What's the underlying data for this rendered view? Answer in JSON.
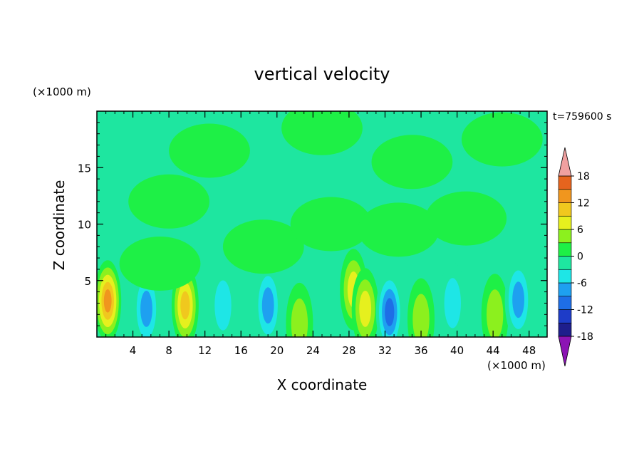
{
  "chart_data": {
    "type": "heatmap",
    "title": "vertical velocity",
    "xlabel": "X coordinate",
    "ylabel": "Z coordinate",
    "x_unit_label": "(×1000 m)",
    "y_unit_label": "(×1000 m)",
    "time_label": "t=759600 s",
    "xlim": [
      0,
      50
    ],
    "ylim": [
      0,
      20
    ],
    "x_ticks": [
      4,
      8,
      12,
      16,
      20,
      24,
      28,
      32,
      36,
      40,
      44,
      48
    ],
    "y_ticks": [
      5,
      10,
      15
    ],
    "colorbar": {
      "levels": [
        -21,
        -18,
        -15,
        -12,
        -9,
        -6,
        -3,
        0,
        3,
        6,
        9,
        12,
        15,
        18,
        21
      ],
      "tick_labels": [
        "18",
        "12",
        "6",
        "0",
        "-6",
        "-12",
        "-18"
      ],
      "tick_values": [
        18,
        12,
        6,
        0,
        -6,
        -12,
        -18
      ],
      "colors": [
        "#5c1ea8",
        "#1e1e8c",
        "#1e3cc8",
        "#1e6ee6",
        "#1ea0f0",
        "#1ee6e6",
        "#1ee6a0",
        "#1ef046",
        "#8cf01e",
        "#e6f01e",
        "#f0c81e",
        "#f0961e",
        "#e6641e",
        "#e63c1e"
      ],
      "over_color": "#f0a0a0",
      "under_color": "#8c14b4"
    },
    "background_level": -1.5,
    "features": [
      {
        "x": 1.2,
        "z": 3.2,
        "value": 15
      },
      {
        "x": 9.8,
        "z": 2.8,
        "value": 12
      },
      {
        "x": 28.5,
        "z": 4.2,
        "value": 9
      },
      {
        "x": 29.8,
        "z": 2.5,
        "value": 7
      },
      {
        "x": 36.0,
        "z": 1.6,
        "value": 5
      },
      {
        "x": 22.5,
        "z": 1.2,
        "value": 5
      },
      {
        "x": 44.2,
        "z": 2.0,
        "value": 5
      },
      {
        "x": 5.5,
        "z": 2.5,
        "value": -9
      },
      {
        "x": 19.0,
        "z": 2.8,
        "value": -9
      },
      {
        "x": 32.5,
        "z": 2.2,
        "value": -10
      },
      {
        "x": 46.8,
        "z": 3.3,
        "value": -9
      },
      {
        "x": 14.0,
        "z": 2.8,
        "value": -5
      },
      {
        "x": 39.5,
        "z": 3.0,
        "value": -5
      },
      {
        "x": 7.0,
        "z": 6.5,
        "value": 3
      },
      {
        "x": 18.5,
        "z": 8.0,
        "value": 3
      },
      {
        "x": 26.0,
        "z": 10.0,
        "value": 2
      },
      {
        "x": 33.5,
        "z": 9.5,
        "value": 2
      },
      {
        "x": 8.0,
        "z": 12.0,
        "value": 2
      },
      {
        "x": 35.0,
        "z": 15.5,
        "value": 1.5
      },
      {
        "x": 12.5,
        "z": 16.5,
        "value": 1.5
      },
      {
        "x": 25.0,
        "z": 18.5,
        "value": 1.5
      },
      {
        "x": 45.0,
        "z": 17.5,
        "value": 1.5
      },
      {
        "x": 41.0,
        "z": 10.5,
        "value": 2
      }
    ]
  }
}
